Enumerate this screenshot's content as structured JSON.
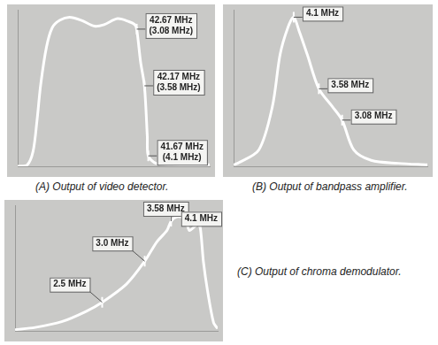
{
  "chart_data": [
    {
      "type": "line",
      "title": "(A) Output of video detector.",
      "color": "#ffffff",
      "grid": false,
      "tick_labels": false,
      "xlim": [
        0,
        100
      ],
      "ylim": [
        0,
        105
      ],
      "x": [
        0,
        5,
        8,
        10,
        12,
        15,
        18,
        22,
        27,
        33,
        40,
        45,
        52,
        58,
        61,
        62,
        64,
        66,
        67.5,
        68,
        72,
        80,
        100
      ],
      "values": [
        0,
        1,
        10,
        30,
        55,
        80,
        93,
        98,
        100,
        98,
        94,
        95,
        99,
        97,
        95,
        92,
        70,
        54,
        20,
        7,
        2,
        1,
        1
      ],
      "annotations": [
        {
          "lines": [
            "42.67 MHz",
            "(3.08 MHz)"
          ],
          "x": 62,
          "y": 92
        },
        {
          "lines": [
            "42.17 MHz",
            "(3.58 MHz)"
          ],
          "x": 66,
          "y": 54
        },
        {
          "lines": [
            "41.67 MHz",
            "(4.1 MHz)"
          ],
          "x": 68,
          "y": 7
        }
      ]
    },
    {
      "type": "line",
      "title": "(B) Output of bandpass amplifier.",
      "color": "#ffffff",
      "grid": false,
      "tick_labels": false,
      "xlim": [
        0,
        100
      ],
      "ylim": [
        0,
        105
      ],
      "x": [
        0,
        2,
        13,
        20,
        24,
        28,
        31,
        34,
        38,
        44,
        51,
        56,
        62,
        71,
        85,
        100
      ],
      "values": [
        1,
        2,
        11,
        40,
        75,
        93,
        100,
        90,
        75,
        52,
        40,
        31,
        11,
        4,
        2,
        1
      ],
      "annotations": [
        {
          "lines": [
            "4.1 MHz"
          ],
          "x": 31,
          "y": 100
        },
        {
          "lines": [
            "3.58 MHz"
          ],
          "x": 44,
          "y": 52
        },
        {
          "lines": [
            "3.08 MHz"
          ],
          "x": 56,
          "y": 31
        }
      ]
    },
    {
      "type": "line",
      "title": "(C) Output of chroma demodulator.",
      "color": "#ffffff",
      "grid": false,
      "tick_labels": false,
      "xlim": [
        0,
        100
      ],
      "ylim": [
        0,
        110
      ],
      "x": [
        0,
        10,
        23,
        35,
        43,
        55,
        64,
        70,
        75,
        77,
        80,
        84,
        86,
        89,
        91,
        93,
        95,
        98,
        100
      ],
      "values": [
        1,
        3,
        8,
        17,
        25,
        41,
        61,
        78,
        88,
        96,
        100,
        98,
        88,
        92,
        95,
        60,
        35,
        7,
        2
      ],
      "annotations": [
        {
          "lines": [
            "2.5 MHz"
          ],
          "x": 43,
          "y": 25
        },
        {
          "lines": [
            "3.0 MHz"
          ],
          "x": 64,
          "y": 61
        },
        {
          "lines": [
            "3.58 MHz"
          ],
          "x": 77,
          "y": 96
        },
        {
          "lines": [
            "4.1 MHz"
          ],
          "x": 91,
          "y": 95
        }
      ]
    }
  ]
}
